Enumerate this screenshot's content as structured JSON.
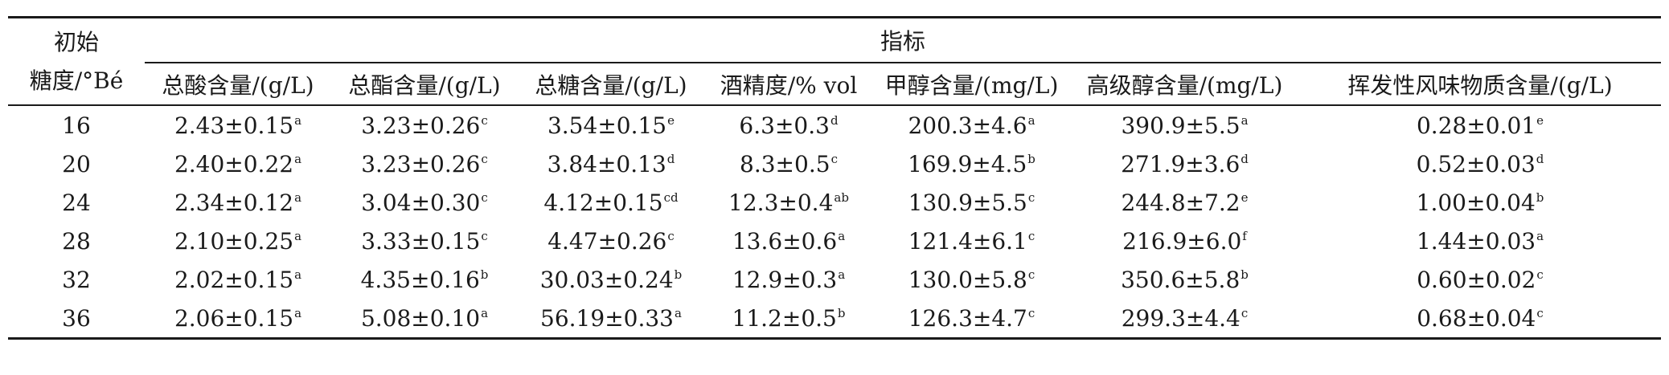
{
  "header": {
    "row_header_line1": "初始",
    "row_header_line2": "糖度/°Bé",
    "group_header": "指标",
    "columns": [
      "总酸含量/(g/L)",
      "总酯含量/(g/L)",
      "总糖含量/(g/L)",
      "酒精度/% vol",
      "甲醇含量/(mg/L)",
      "高级醇含量/(mg/L)",
      "挥发性风味物质含量/(g/L)"
    ]
  },
  "rows": [
    {
      "brix": "16",
      "cells": [
        {
          "v": "2.43±0.15",
          "s": "a"
        },
        {
          "v": "3.23±0.26",
          "s": "c"
        },
        {
          "v": "3.54±0.15",
          "s": "e"
        },
        {
          "v": "6.3±0.3",
          "s": "d"
        },
        {
          "v": "200.3±4.6",
          "s": "a"
        },
        {
          "v": "390.9±5.5",
          "s": "a"
        },
        {
          "v": "0.28±0.01",
          "s": "e"
        }
      ]
    },
    {
      "brix": "20",
      "cells": [
        {
          "v": "2.40±0.22",
          "s": "a"
        },
        {
          "v": "3.23±0.26",
          "s": "c"
        },
        {
          "v": "3.84±0.13",
          "s": "d"
        },
        {
          "v": "8.3±0.5",
          "s": "c"
        },
        {
          "v": "169.9±4.5",
          "s": "b"
        },
        {
          "v": "271.9±3.6",
          "s": "d"
        },
        {
          "v": "0.52±0.03",
          "s": "d"
        }
      ]
    },
    {
      "brix": "24",
      "cells": [
        {
          "v": "2.34±0.12",
          "s": "a"
        },
        {
          "v": "3.04±0.30",
          "s": "c"
        },
        {
          "v": "4.12±0.15",
          "s": "cd"
        },
        {
          "v": "12.3±0.4",
          "s": "ab"
        },
        {
          "v": "130.9±5.5",
          "s": "c"
        },
        {
          "v": "244.8±7.2",
          "s": "e"
        },
        {
          "v": "1.00±0.04",
          "s": "b"
        }
      ]
    },
    {
      "brix": "28",
      "cells": [
        {
          "v": "2.10±0.25",
          "s": "a"
        },
        {
          "v": "3.33±0.15",
          "s": "c"
        },
        {
          "v": "4.47±0.26",
          "s": "c"
        },
        {
          "v": "13.6±0.6",
          "s": "a"
        },
        {
          "v": "121.4±6.1",
          "s": "c"
        },
        {
          "v": "216.9±6.0",
          "s": "f"
        },
        {
          "v": "1.44±0.03",
          "s": "a"
        }
      ]
    },
    {
      "brix": "32",
      "cells": [
        {
          "v": "2.02±0.15",
          "s": "a"
        },
        {
          "v": "4.35±0.16",
          "s": "b"
        },
        {
          "v": "30.03±0.24",
          "s": "b"
        },
        {
          "v": "12.9±0.3",
          "s": "a"
        },
        {
          "v": "130.0±5.8",
          "s": "c"
        },
        {
          "v": "350.6±5.8",
          "s": "b"
        },
        {
          "v": "0.60±0.02",
          "s": "c"
        }
      ]
    },
    {
      "brix": "36",
      "cells": [
        {
          "v": "2.06±0.15",
          "s": "a"
        },
        {
          "v": "5.08±0.10",
          "s": "a"
        },
        {
          "v": "56.19±0.33",
          "s": "a"
        },
        {
          "v": "11.2±0.5",
          "s": "b"
        },
        {
          "v": "126.3±4.7",
          "s": "c"
        },
        {
          "v": "299.3±4.4",
          "s": "c"
        },
        {
          "v": "0.68±0.04",
          "s": "c"
        }
      ]
    }
  ]
}
